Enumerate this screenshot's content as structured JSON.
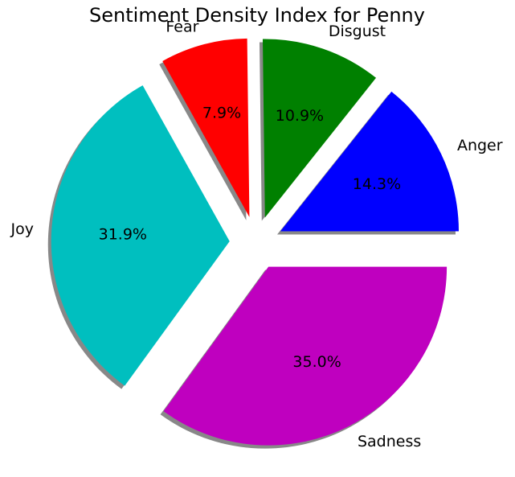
{
  "chart_data": {
    "type": "pie",
    "title": "Sentiment Density Index for Penny",
    "categories": [
      "Anger",
      "Disgust",
      "Fear",
      "Joy",
      "Sadness"
    ],
    "values": [
      14.3,
      10.9,
      7.9,
      31.9,
      35.0
    ],
    "percent_labels": [
      "14.3%",
      "10.9%",
      "7.9%",
      "31.9%",
      "35.0%"
    ],
    "colors": [
      "#0000ff",
      "#008000",
      "#ff0000",
      "#00bfbf",
      "#bf00bf"
    ],
    "exploded": true,
    "shadow": true,
    "shadow_color": "#888888",
    "start_angle_deg": 0,
    "direction": "counterclockwise",
    "legend": "none"
  }
}
